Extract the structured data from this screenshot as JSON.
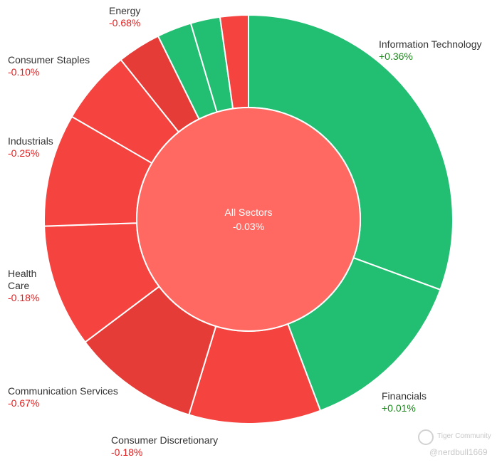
{
  "colors": {
    "positive": "#22be72",
    "negative": "#f5433f",
    "negative_dark": "#e63c38",
    "center": "#ff6961",
    "border": "#ffffff",
    "pos_text": "#1a8a1a",
    "neg_text": "#e02020"
  },
  "chart_data": {
    "type": "pie",
    "variant": "donut",
    "title": "",
    "center": {
      "label": "All Sectors",
      "change": "-0.03%"
    },
    "segments": [
      {
        "name": "Information Technology",
        "change": "+0.36%",
        "weight": 30.2,
        "color": "#22be72"
      },
      {
        "name": "Financials",
        "change": "+0.01%",
        "weight": 13.5,
        "color": "#22be72"
      },
      {
        "name": "Consumer Discretionary",
        "change": "-0.18%",
        "weight": 10.3,
        "color": "#f5433f"
      },
      {
        "name": "Communication Services",
        "change": "-0.67%",
        "weight": 9.9,
        "color": "#e63c38"
      },
      {
        "name": "Health Care",
        "change": "-0.18%",
        "weight": 9.6,
        "color": "#f5433f"
      },
      {
        "name": "Industrials",
        "change": "-0.25%",
        "weight": 8.8,
        "color": "#f5433f"
      },
      {
        "name": "Consumer Staples",
        "change": "-0.10%",
        "weight": 5.8,
        "color": "#f5433f"
      },
      {
        "name": "Energy",
        "change": "-0.68%",
        "weight": 3.4,
        "color": "#e63c38"
      },
      {
        "name": "",
        "change": "",
        "weight": 2.7,
        "color": "#22be72"
      },
      {
        "name": "",
        "change": "",
        "weight": 2.3,
        "color": "#22be72"
      },
      {
        "name": "",
        "change": "",
        "weight": 2.2,
        "color": "#f5433f"
      }
    ]
  },
  "labels": {
    "information_technology": {
      "name": "Information Technology",
      "change": "+0.36%"
    },
    "financials": {
      "name": "Financials",
      "change": "+0.01%"
    },
    "consumer_discretionary": {
      "name": "Consumer Discretionary",
      "change": "-0.18%"
    },
    "communication_services": {
      "name": "Communication Services",
      "change": "-0.67%"
    },
    "health_care": {
      "name_line1": "Health",
      "name_line2": "Care",
      "change": "-0.18%"
    },
    "industrials": {
      "name": "Industrials",
      "change": "-0.25%"
    },
    "consumer_staples": {
      "name": "Consumer Staples",
      "change": "-0.10%"
    },
    "energy": {
      "name": "Energy",
      "change": "-0.68%"
    }
  },
  "watermark": {
    "brand": "Tiger Community",
    "user": "@nerdbull1669"
  }
}
